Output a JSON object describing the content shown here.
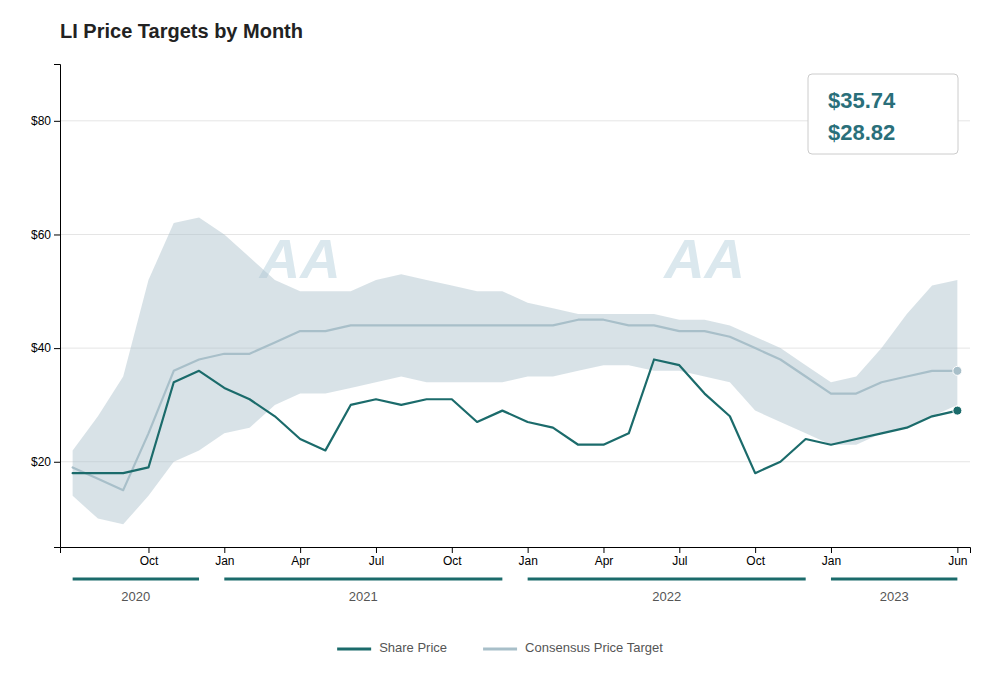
{
  "chart_data": {
    "type": "line",
    "title": "LI Price Targets by Month",
    "categories": [
      null,
      null,
      null,
      "Oct",
      null,
      null,
      "Jan",
      null,
      null,
      "Apr",
      null,
      null,
      "Jul",
      null,
      null,
      "Oct",
      null,
      null,
      "Jan",
      null,
      null,
      "Apr",
      null,
      null,
      "Jul",
      null,
      null,
      "Oct",
      null,
      null,
      "Jan",
      null,
      null,
      null,
      null,
      "Jun"
    ],
    "category_groups": [
      {
        "label": "2020",
        "start": 0,
        "end": 5
      },
      {
        "label": "2021",
        "start": 6,
        "end": 17
      },
      {
        "label": "2022",
        "start": 18,
        "end": 29
      },
      {
        "label": "2023",
        "start": 30,
        "end": 35
      }
    ],
    "series": [
      {
        "name": "Share Price",
        "color": "#1b6b6b",
        "values": [
          18,
          18,
          18,
          19,
          34,
          36,
          33,
          31,
          28,
          24,
          22,
          30,
          31,
          30,
          31,
          31,
          27,
          29,
          27,
          26,
          23,
          23,
          25,
          38,
          37,
          32,
          28,
          18,
          20,
          24,
          23,
          24,
          25,
          26,
          28,
          29
        ]
      },
      {
        "name": "Consensus Price Target",
        "color": "#a8bfc9",
        "values": [
          19,
          17,
          15,
          25,
          36,
          38,
          39,
          39,
          41,
          43,
          43,
          44,
          44,
          44,
          44,
          44,
          44,
          44,
          44,
          44,
          45,
          45,
          44,
          44,
          43,
          43,
          42,
          40,
          38,
          35,
          32,
          32,
          34,
          35,
          36,
          36
        ],
        "high": [
          22,
          28,
          35,
          52,
          62,
          63,
          60,
          56,
          52,
          50,
          50,
          50,
          52,
          53,
          52,
          51,
          50,
          50,
          48,
          47,
          46,
          46,
          46,
          46,
          45,
          45,
          44,
          42,
          40,
          37,
          34,
          35,
          40,
          46,
          51,
          52
        ],
        "low": [
          14,
          10,
          9,
          14,
          20,
          22,
          25,
          26,
          30,
          32,
          32,
          33,
          34,
          35,
          34,
          34,
          34,
          34,
          35,
          35,
          36,
          37,
          37,
          36,
          36,
          35,
          34,
          29,
          27,
          25,
          23,
          23,
          25,
          26,
          28,
          30
        ]
      }
    ],
    "ylim": [
      5,
      90
    ],
    "yticks": [
      {
        "value": 20,
        "label": "$20"
      },
      {
        "value": 40,
        "label": "$40"
      },
      {
        "value": 60,
        "label": "$60"
      },
      {
        "value": 80,
        "label": "$80"
      }
    ],
    "grid": true,
    "legend": "bottom",
    "annotations": [
      {
        "text": "$35.74"
      },
      {
        "text": "$28.82"
      },
      {
        "text": "AA",
        "x": 9,
        "y": 55
      },
      {
        "text": "AA",
        "x": 25,
        "y": 55
      }
    ]
  }
}
